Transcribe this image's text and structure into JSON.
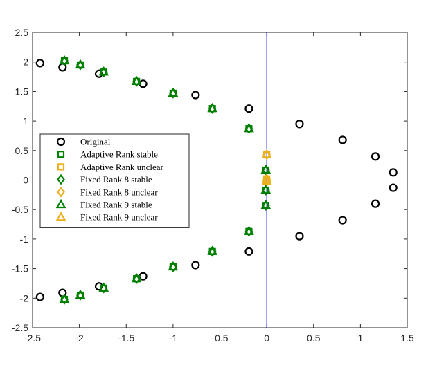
{
  "chart_data": {
    "type": "scatter",
    "title": "",
    "xlabel": "",
    "ylabel": "",
    "xlim": [
      -2.5,
      1.5
    ],
    "ylim": [
      -2.5,
      2.5
    ],
    "x_ticks": [
      "-2.5",
      "-2",
      "-1.5",
      "-1",
      "-0.5",
      "0",
      "0.5",
      "1",
      "1.5"
    ],
    "y_ticks": [
      "2.5",
      "2",
      "1.5",
      "1",
      "0.5",
      "0",
      "-0.5",
      "-1",
      "-1.5",
      "-2",
      "-2.5"
    ],
    "grid": false,
    "legend_position": "middle-left",
    "reference_line": {
      "x": 0,
      "color": "#0000ff"
    },
    "series": [
      {
        "name": "Original",
        "marker": "circle",
        "color": "#000000",
        "points": [
          [
            -2.42,
            1.98
          ],
          [
            -2.18,
            1.91
          ],
          [
            -1.79,
            1.8
          ],
          [
            -1.32,
            1.63
          ],
          [
            -0.76,
            1.44
          ],
          [
            -0.19,
            1.21
          ],
          [
            0.35,
            0.95
          ],
          [
            0.81,
            0.68
          ],
          [
            1.16,
            0.4
          ],
          [
            1.35,
            0.13
          ],
          [
            1.35,
            -0.13
          ],
          [
            1.16,
            -0.4
          ],
          [
            0.81,
            -0.68
          ],
          [
            0.35,
            -0.95
          ],
          [
            -0.19,
            -1.21
          ],
          [
            -0.76,
            -1.44
          ],
          [
            -1.32,
            -1.63
          ],
          [
            -1.79,
            -1.8
          ],
          [
            -2.18,
            -1.91
          ],
          [
            -2.42,
            -1.98
          ]
        ]
      },
      {
        "name": "Adaptive Rank stable",
        "marker": "square",
        "color": "#008000",
        "points": [
          [
            -2.16,
            2.02
          ],
          [
            -1.99,
            1.95
          ],
          [
            -1.74,
            1.83
          ],
          [
            -1.39,
            1.67
          ],
          [
            -1.0,
            1.47
          ],
          [
            -0.58,
            1.21
          ],
          [
            -0.19,
            0.87
          ],
          [
            -0.01,
            0.17
          ],
          [
            -0.01,
            -0.17
          ],
          [
            -0.01,
            -0.43
          ],
          [
            -0.19,
            -0.87
          ],
          [
            -0.58,
            -1.21
          ],
          [
            -1.0,
            -1.47
          ],
          [
            -1.39,
            -1.67
          ],
          [
            -1.74,
            -1.83
          ],
          [
            -1.99,
            -1.95
          ],
          [
            -2.16,
            -2.02
          ]
        ]
      },
      {
        "name": "Adaptive Rank unclear",
        "marker": "square",
        "color": "#edb120",
        "points": [
          [
            0.0,
            0.43
          ],
          [
            0.0,
            0.02
          ],
          [
            0.0,
            -0.02
          ]
        ]
      },
      {
        "name": "Fixed Rank 8 stable",
        "marker": "diamond",
        "color": "#008000",
        "points": [
          [
            -2.16,
            2.02
          ],
          [
            -1.99,
            1.95
          ],
          [
            -1.74,
            1.83
          ],
          [
            -1.39,
            1.67
          ],
          [
            -1.0,
            1.47
          ],
          [
            -0.58,
            1.21
          ],
          [
            -0.19,
            0.87
          ],
          [
            -0.01,
            0.17
          ],
          [
            -0.01,
            -0.17
          ],
          [
            -0.01,
            -0.43
          ],
          [
            -0.19,
            -0.87
          ],
          [
            -0.58,
            -1.21
          ],
          [
            -1.0,
            -1.47
          ],
          [
            -1.39,
            -1.67
          ],
          [
            -1.74,
            -1.83
          ],
          [
            -1.99,
            -1.95
          ],
          [
            -2.16,
            -2.02
          ]
        ]
      },
      {
        "name": "Fixed Rank 8 unclear",
        "marker": "diamond",
        "color": "#edb120",
        "points": [
          [
            0.0,
            0.43
          ],
          [
            0.0,
            0.02
          ],
          [
            0.0,
            -0.02
          ]
        ]
      },
      {
        "name": "Fixed Rank 9 stable",
        "marker": "triangle",
        "color": "#008000",
        "points": [
          [
            -2.16,
            2.02
          ],
          [
            -1.99,
            1.95
          ],
          [
            -1.74,
            1.83
          ],
          [
            -1.39,
            1.67
          ],
          [
            -1.0,
            1.47
          ],
          [
            -0.58,
            1.21
          ],
          [
            -0.19,
            0.87
          ],
          [
            -0.01,
            0.17
          ],
          [
            -0.01,
            -0.17
          ],
          [
            -0.01,
            -0.43
          ],
          [
            -0.19,
            -0.87
          ],
          [
            -0.58,
            -1.21
          ],
          [
            -1.0,
            -1.47
          ],
          [
            -1.39,
            -1.67
          ],
          [
            -1.74,
            -1.83
          ],
          [
            -1.99,
            -1.95
          ],
          [
            -2.16,
            -2.02
          ]
        ]
      },
      {
        "name": "Fixed Rank 9 unclear",
        "marker": "triangle",
        "color": "#edb120",
        "points": [
          [
            0.0,
            0.43
          ],
          [
            0.0,
            0.02
          ],
          [
            0.0,
            -0.02
          ]
        ]
      }
    ]
  }
}
